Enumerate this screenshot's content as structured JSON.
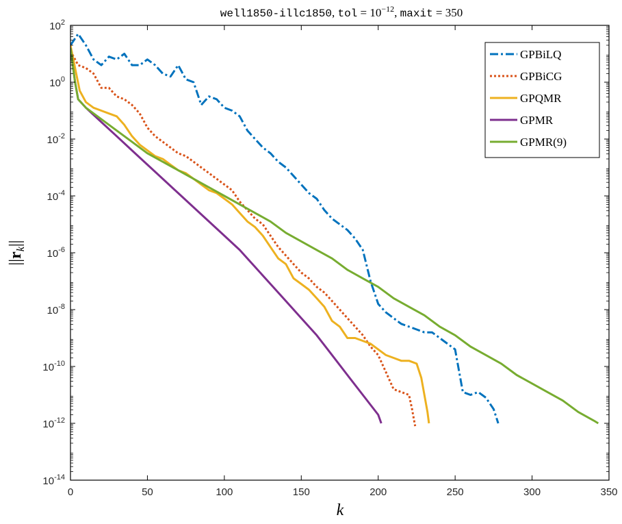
{
  "chart_data": {
    "type": "line",
    "title": "well1850-illc1850, tol = 10^{-12}, maxit = 350",
    "title_parts": {
      "mono1": "well1850-illc1850",
      "sep1": ", ",
      "tol_name": "tol",
      "eq1": " = 10",
      "tol_exp": "−12",
      "sep2": ", ",
      "maxit_name": "maxit",
      "eq2": " = 350"
    },
    "xlabel": "k",
    "ylabel": "||r_k||",
    "ylabel_parts": {
      "open": "||",
      "bold": "r",
      "sub": "k",
      "close": "||"
    },
    "xlim": [
      0,
      350
    ],
    "ylim_log10": [
      -14,
      2
    ],
    "yscale": "log",
    "grid": false,
    "legend_position": "top-right",
    "x_ticks": [
      0,
      50,
      100,
      150,
      200,
      250,
      300,
      350
    ],
    "y_tick_exponents": [
      2,
      0,
      -2,
      -4,
      -6,
      -8,
      -10,
      -12,
      -14
    ],
    "y_tick_base": "10",
    "series": [
      {
        "name": "GPBiLQ",
        "color": "#0072BD",
        "style": "dashdot",
        "points": [
          [
            0,
            1.3
          ],
          [
            5,
            1.7
          ],
          [
            10,
            1.3
          ],
          [
            15,
            0.8
          ],
          [
            20,
            0.6
          ],
          [
            25,
            0.9
          ],
          [
            30,
            0.8
          ],
          [
            35,
            1.0
          ],
          [
            40,
            0.6
          ],
          [
            45,
            0.6
          ],
          [
            50,
            0.8
          ],
          [
            55,
            0.6
          ],
          [
            60,
            0.3
          ],
          [
            65,
            0.2
          ],
          [
            70,
            0.6
          ],
          [
            75,
            0.1
          ],
          [
            80,
            0.0
          ],
          [
            85,
            -0.8
          ],
          [
            90,
            -0.5
          ],
          [
            95,
            -0.6
          ],
          [
            100,
            -0.9
          ],
          [
            105,
            -1.0
          ],
          [
            110,
            -1.2
          ],
          [
            115,
            -1.7
          ],
          [
            120,
            -2.0
          ],
          [
            125,
            -2.3
          ],
          [
            130,
            -2.5
          ],
          [
            135,
            -2.8
          ],
          [
            140,
            -3.0
          ],
          [
            145,
            -3.3
          ],
          [
            150,
            -3.6
          ],
          [
            155,
            -3.9
          ],
          [
            160,
            -4.1
          ],
          [
            165,
            -4.5
          ],
          [
            170,
            -4.8
          ],
          [
            175,
            -5.0
          ],
          [
            180,
            -5.2
          ],
          [
            185,
            -5.5
          ],
          [
            190,
            -5.9
          ],
          [
            195,
            -7.0
          ],
          [
            200,
            -7.8
          ],
          [
            205,
            -8.1
          ],
          [
            210,
            -8.3
          ],
          [
            215,
            -8.5
          ],
          [
            220,
            -8.6
          ],
          [
            225,
            -8.7
          ],
          [
            230,
            -8.8
          ],
          [
            235,
            -8.8
          ],
          [
            240,
            -9.0
          ],
          [
            245,
            -9.2
          ],
          [
            250,
            -9.4
          ],
          [
            255,
            -10.9
          ],
          [
            260,
            -11.0
          ],
          [
            265,
            -10.9
          ],
          [
            270,
            -11.1
          ],
          [
            275,
            -11.5
          ],
          [
            278,
            -12.0
          ]
        ]
      },
      {
        "name": "GPBiCG",
        "color": "#D95319",
        "style": "dotted",
        "points": [
          [
            0,
            1.1
          ],
          [
            5,
            0.6
          ],
          [
            10,
            0.5
          ],
          [
            15,
            0.3
          ],
          [
            20,
            -0.2
          ],
          [
            25,
            -0.2
          ],
          [
            30,
            -0.5
          ],
          [
            35,
            -0.6
          ],
          [
            40,
            -0.8
          ],
          [
            45,
            -1.1
          ],
          [
            50,
            -1.6
          ],
          [
            55,
            -1.9
          ],
          [
            60,
            -2.1
          ],
          [
            65,
            -2.3
          ],
          [
            70,
            -2.5
          ],
          [
            75,
            -2.6
          ],
          [
            80,
            -2.8
          ],
          [
            85,
            -3.0
          ],
          [
            90,
            -3.2
          ],
          [
            95,
            -3.4
          ],
          [
            100,
            -3.6
          ],
          [
            105,
            -3.8
          ],
          [
            110,
            -4.2
          ],
          [
            115,
            -4.5
          ],
          [
            120,
            -4.8
          ],
          [
            125,
            -5.0
          ],
          [
            130,
            -5.4
          ],
          [
            135,
            -5.8
          ],
          [
            140,
            -6.1
          ],
          [
            145,
            -6.4
          ],
          [
            150,
            -6.7
          ],
          [
            155,
            -6.9
          ],
          [
            160,
            -7.2
          ],
          [
            165,
            -7.4
          ],
          [
            170,
            -7.7
          ],
          [
            175,
            -8.0
          ],
          [
            180,
            -8.3
          ],
          [
            185,
            -8.6
          ],
          [
            190,
            -8.9
          ],
          [
            195,
            -9.3
          ],
          [
            200,
            -9.6
          ],
          [
            205,
            -10.2
          ],
          [
            210,
            -10.8
          ],
          [
            215,
            -10.9
          ],
          [
            220,
            -11.0
          ],
          [
            222,
            -11.5
          ],
          [
            224,
            -12.1
          ]
        ]
      },
      {
        "name": "GPQMR",
        "color": "#EDB120",
        "style": "solid",
        "points": [
          [
            0,
            1.3
          ],
          [
            3,
            0.5
          ],
          [
            6,
            -0.3
          ],
          [
            10,
            -0.7
          ],
          [
            15,
            -0.9
          ],
          [
            20,
            -1.0
          ],
          [
            25,
            -1.1
          ],
          [
            30,
            -1.2
          ],
          [
            35,
            -1.5
          ],
          [
            40,
            -1.9
          ],
          [
            45,
            -2.2
          ],
          [
            50,
            -2.4
          ],
          [
            55,
            -2.6
          ],
          [
            60,
            -2.7
          ],
          [
            65,
            -2.9
          ],
          [
            70,
            -3.1
          ],
          [
            75,
            -3.2
          ],
          [
            80,
            -3.4
          ],
          [
            85,
            -3.6
          ],
          [
            90,
            -3.8
          ],
          [
            95,
            -3.9
          ],
          [
            100,
            -4.1
          ],
          [
            105,
            -4.3
          ],
          [
            110,
            -4.6
          ],
          [
            115,
            -4.9
          ],
          [
            120,
            -5.1
          ],
          [
            125,
            -5.4
          ],
          [
            130,
            -5.8
          ],
          [
            135,
            -6.2
          ],
          [
            140,
            -6.4
          ],
          [
            145,
            -6.9
          ],
          [
            150,
            -7.1
          ],
          [
            155,
            -7.3
          ],
          [
            160,
            -7.6
          ],
          [
            165,
            -7.9
          ],
          [
            170,
            -8.4
          ],
          [
            175,
            -8.6
          ],
          [
            180,
            -9.0
          ],
          [
            185,
            -9.0
          ],
          [
            190,
            -9.1
          ],
          [
            195,
            -9.2
          ],
          [
            200,
            -9.4
          ],
          [
            205,
            -9.6
          ],
          [
            210,
            -9.7
          ],
          [
            215,
            -9.8
          ],
          [
            220,
            -9.8
          ],
          [
            225,
            -9.9
          ],
          [
            228,
            -10.4
          ],
          [
            230,
            -11.0
          ],
          [
            232,
            -11.6
          ],
          [
            233,
            -12.0
          ]
        ]
      },
      {
        "name": "GPMR",
        "color": "#7E2F8E",
        "style": "solid",
        "points": [
          [
            0,
            1.2
          ],
          [
            3,
            0.0
          ],
          [
            5,
            -0.6
          ],
          [
            10,
            -0.9
          ],
          [
            20,
            -1.4
          ],
          [
            30,
            -1.9
          ],
          [
            40,
            -2.4
          ],
          [
            50,
            -2.9
          ],
          [
            60,
            -3.4
          ],
          [
            70,
            -3.9
          ],
          [
            80,
            -4.4
          ],
          [
            90,
            -4.9
          ],
          [
            100,
            -5.4
          ],
          [
            110,
            -5.9
          ],
          [
            120,
            -6.5
          ],
          [
            130,
            -7.1
          ],
          [
            140,
            -7.7
          ],
          [
            150,
            -8.3
          ],
          [
            160,
            -8.9
          ],
          [
            170,
            -9.6
          ],
          [
            180,
            -10.3
          ],
          [
            190,
            -11.0
          ],
          [
            200,
            -11.7
          ],
          [
            202,
            -12.0
          ]
        ]
      },
      {
        "name": "GPMR(9)",
        "color": "#77AC30",
        "style": "solid",
        "points": [
          [
            0,
            1.2
          ],
          [
            3,
            0.0
          ],
          [
            5,
            -0.6
          ],
          [
            10,
            -0.9
          ],
          [
            20,
            -1.3
          ],
          [
            30,
            -1.7
          ],
          [
            40,
            -2.1
          ],
          [
            50,
            -2.5
          ],
          [
            60,
            -2.8
          ],
          [
            70,
            -3.1
          ],
          [
            80,
            -3.4
          ],
          [
            90,
            -3.7
          ],
          [
            100,
            -4.0
          ],
          [
            110,
            -4.3
          ],
          [
            120,
            -4.6
          ],
          [
            130,
            -4.9
          ],
          [
            140,
            -5.3
          ],
          [
            150,
            -5.6
          ],
          [
            160,
            -5.9
          ],
          [
            170,
            -6.2
          ],
          [
            180,
            -6.6
          ],
          [
            190,
            -6.9
          ],
          [
            200,
            -7.2
          ],
          [
            210,
            -7.6
          ],
          [
            220,
            -7.9
          ],
          [
            230,
            -8.2
          ],
          [
            240,
            -8.6
          ],
          [
            250,
            -8.9
          ],
          [
            260,
            -9.3
          ],
          [
            270,
            -9.6
          ],
          [
            280,
            -9.9
          ],
          [
            290,
            -10.3
          ],
          [
            300,
            -10.6
          ],
          [
            310,
            -10.9
          ],
          [
            320,
            -11.2
          ],
          [
            330,
            -11.6
          ],
          [
            340,
            -11.9
          ],
          [
            343,
            -12.0
          ]
        ]
      }
    ]
  }
}
